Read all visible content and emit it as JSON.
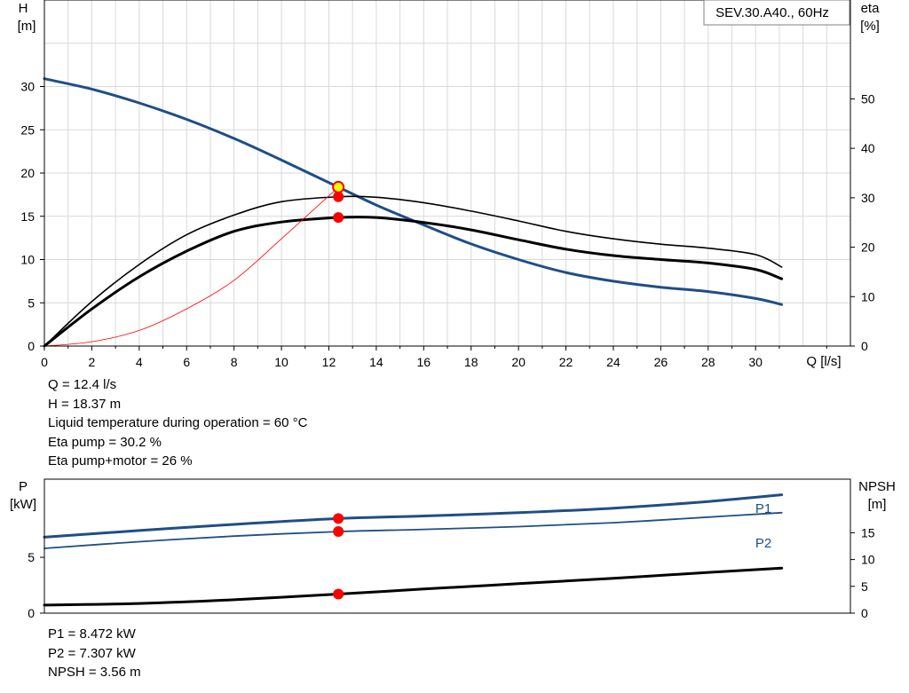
{
  "chart_data": [
    {
      "type": "line",
      "name": "head-efficiency",
      "xlabel": "Q [l/s]",
      "ylabel_left": "H",
      "ylabel_left_unit": "[m]",
      "ylabel_right": "eta",
      "ylabel_right_unit": "[%]",
      "legend": "SEV.30.A40., 60Hz",
      "xlim": [
        0,
        34
      ],
      "ylim_left": [
        0,
        40
      ],
      "ylim_right": [
        0,
        70
      ],
      "grid": true,
      "x_ticks": [
        0,
        2,
        4,
        6,
        8,
        10,
        12,
        14,
        16,
        18,
        20,
        22,
        24,
        26,
        28,
        30
      ],
      "y_left_ticks": [
        0,
        5,
        10,
        15,
        20,
        25,
        30
      ],
      "y_right_ticks": [
        0,
        10,
        20,
        30,
        40,
        50
      ],
      "series": [
        {
          "axis": "left",
          "color": "#1f4e86",
          "width": 3,
          "x": [
            0,
            2,
            4,
            6,
            8,
            10,
            12.4,
            14,
            16,
            18,
            20,
            22,
            24,
            26,
            28,
            30,
            31.1
          ],
          "y": [
            30.9,
            29.7,
            28.1,
            26.2,
            24.0,
            21.5,
            18.37,
            16.3,
            14.0,
            11.8,
            10.0,
            8.5,
            7.5,
            6.8,
            6.3,
            5.5,
            4.8
          ]
        },
        {
          "axis": "right",
          "color": "#000000",
          "width": 1.6,
          "x": [
            0,
            2,
            4,
            6,
            8,
            10,
            12.4,
            14,
            16,
            18,
            20,
            22,
            24,
            26,
            28,
            30,
            31.1
          ],
          "y": [
            0,
            9,
            16.5,
            22.5,
            26.5,
            29.2,
            30.2,
            30.1,
            29,
            27.3,
            25.3,
            23.2,
            21.7,
            20.6,
            19.8,
            18.5,
            16
          ]
        },
        {
          "axis": "right",
          "color": "#000000",
          "width": 3,
          "x": [
            0,
            2,
            4,
            6,
            8,
            10,
            12.4,
            14,
            16,
            18,
            20,
            22,
            24,
            26,
            28,
            30,
            31.1
          ],
          "y": [
            0,
            7.5,
            14,
            19.2,
            23.2,
            25.1,
            26,
            26,
            25,
            23.5,
            21.5,
            19.6,
            18.3,
            17.5,
            16.8,
            15.5,
            13.6
          ]
        },
        {
          "axis": "left",
          "color": "#ff0000",
          "width": 0.8,
          "x": [
            0,
            2,
            4,
            6,
            8,
            10,
            12.4
          ],
          "y": [
            0,
            0.5,
            1.8,
            4.3,
            7.6,
            12.4,
            18.37
          ]
        }
      ],
      "points": [
        {
          "axis": "left",
          "x": 12.4,
          "y": 18.37,
          "style": "operating"
        },
        {
          "axis": "right",
          "x": 12.4,
          "y": 30.2,
          "style": "marker"
        },
        {
          "axis": "right",
          "x": 12.4,
          "y": 26,
          "style": "marker"
        }
      ]
    },
    {
      "type": "line",
      "name": "power-npsh",
      "ylabel_left": "P",
      "ylabel_left_unit": "[kW]",
      "ylabel_right": "NPSH",
      "ylabel_right_unit": "[m]",
      "xlim": [
        0,
        34
      ],
      "ylim_left": [
        0,
        12
      ],
      "ylim_right": [
        0,
        25
      ],
      "grid": false,
      "y_left_ticks": [
        0,
        5
      ],
      "y_right_ticks": [
        0,
        5,
        10,
        15
      ],
      "series": [
        {
          "name": "P1",
          "axis": "left",
          "color": "#1f4e86",
          "width": 3,
          "x": [
            0,
            4,
            8,
            12.4,
            16,
            20,
            24,
            28,
            31.1
          ],
          "y": [
            6.8,
            7.4,
            7.95,
            8.472,
            8.7,
            9.0,
            9.4,
            10.0,
            10.6
          ]
        },
        {
          "name": "P2",
          "axis": "left",
          "color": "#1f4e86",
          "width": 1.8,
          "x": [
            0,
            4,
            8,
            12.4,
            16,
            20,
            24,
            28,
            31.1
          ],
          "y": [
            5.8,
            6.4,
            6.9,
            7.307,
            7.5,
            7.75,
            8.1,
            8.6,
            9.0
          ]
        },
        {
          "axis": "right",
          "color": "#000000",
          "width": 3,
          "x": [
            0,
            4,
            8,
            12.4,
            16,
            20,
            24,
            28,
            31.1
          ],
          "y": [
            1.5,
            1.8,
            2.5,
            3.56,
            4.5,
            5.5,
            6.5,
            7.6,
            8.4
          ]
        }
      ],
      "points": [
        {
          "axis": "left",
          "x": 12.4,
          "y": 8.472
        },
        {
          "axis": "left",
          "x": 12.4,
          "y": 7.307
        },
        {
          "axis": "right",
          "x": 12.4,
          "y": 3.56
        }
      ]
    }
  ],
  "info_top": [
    "Q = 12.4 l/s",
    "H = 18.37 m",
    "Liquid temperature during operation = 60 °C",
    "Eta pump = 30.2 %",
    "Eta pump+motor = 26 %"
  ],
  "info_bottom": [
    "P1 = 8.472 kW",
    "P2 = 7.307 kW",
    "NPSH = 3.56 m"
  ]
}
